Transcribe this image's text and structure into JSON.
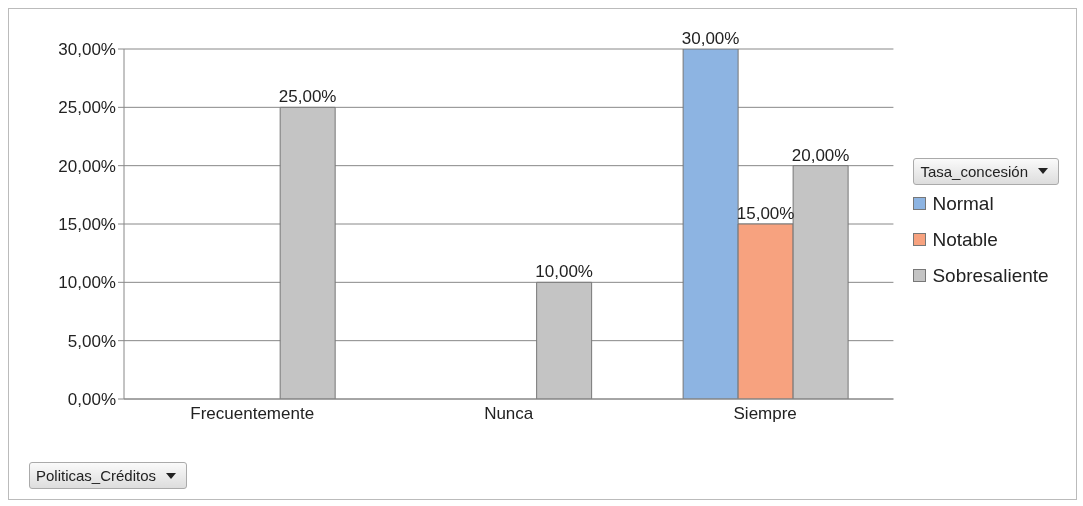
{
  "chart_data": {
    "type": "bar",
    "xlabel": "Politicas_Créditos",
    "legend_title": "Tasa_concesión",
    "categories": [
      "Frecuentemente",
      "Nunca",
      "Siempre"
    ],
    "series": [
      {
        "name": "Normal",
        "color": "#8db4e2",
        "values": [
          0,
          0,
          30
        ],
        "value_labels": [
          null,
          null,
          "30,00%"
        ]
      },
      {
        "name": "Notable",
        "color": "#f7a27f",
        "values": [
          0,
          0,
          15
        ],
        "value_labels": [
          null,
          null,
          "15,00%"
        ]
      },
      {
        "name": "Sobresaliente",
        "color": "#c4c4c4",
        "values": [
          25,
          10,
          20
        ],
        "value_labels": [
          "25,00%",
          "10,00%",
          "20,00%"
        ]
      }
    ],
    "ylim": [
      0,
      30
    ],
    "yticks": [
      {
        "value": 0,
        "label": "0,00%"
      },
      {
        "value": 5,
        "label": "5,00%"
      },
      {
        "value": 10,
        "label": "10,00%"
      },
      {
        "value": 15,
        "label": "15,00%"
      },
      {
        "value": 20,
        "label": "20,00%"
      },
      {
        "value": 25,
        "label": "25,00%"
      },
      {
        "value": 30,
        "label": "30,00%"
      }
    ],
    "grid": "y",
    "legend": "right"
  }
}
